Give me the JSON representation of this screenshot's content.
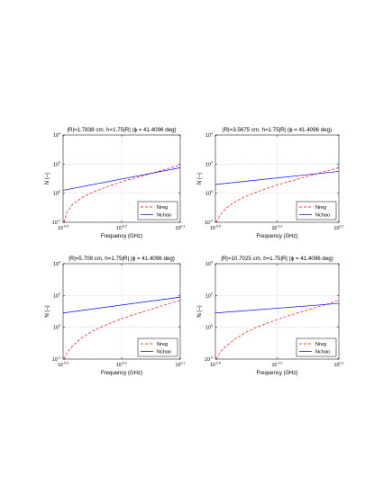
{
  "chart_data": [
    {
      "type": "line",
      "title": "|R|=1.7838 cm, h=1.75|R| (ϕ = 41.4096 deg)",
      "xlabel": "Frequency (GHz)",
      "ylabel": "N (–)",
      "xscale": "log",
      "yscale": "log",
      "xlim_exp": [
        -0.5,
        0.1
      ],
      "ylim_exp": [
        -2,
        4
      ],
      "xticks": [
        {
          "base": "10",
          "exp": "-0.5"
        },
        {
          "base": "10",
          "exp": "-0.2"
        },
        {
          "base": "10",
          "exp": "0.1"
        }
      ],
      "yticks": [
        {
          "base": "10",
          "exp": "4"
        },
        {
          "base": "10",
          "exp": "2"
        },
        {
          "base": "10",
          "exp": "0"
        },
        {
          "base": "10",
          "exp": "-2"
        }
      ],
      "grid": true,
      "legend": "bottom-right",
      "series": [
        {
          "name": "Nreg",
          "color": "#ff0000",
          "dash": "dashed",
          "x_exp": [
            -0.495,
            -0.48,
            -0.45,
            -0.4,
            -0.35,
            -0.3,
            -0.25,
            -0.2,
            -0.15,
            -0.1,
            -0.05,
            0.0,
            0.05,
            0.1
          ],
          "y_exp": [
            -2.0,
            -1.3,
            -0.75,
            -0.28,
            0.05,
            0.32,
            0.56,
            0.78,
            0.98,
            1.17,
            1.35,
            1.55,
            1.75,
            1.95
          ]
        },
        {
          "name": "Nchao",
          "color": "#0000ff",
          "dash": "solid",
          "x_exp": [
            -0.5,
            0.1
          ],
          "y_exp": [
            0.2,
            1.75
          ]
        }
      ]
    },
    {
      "type": "line",
      "title": "|R|=3.5675 cm, h=1.75|R| (ϕ = 41.4096 deg)",
      "xlabel": "Frequency (GHz)",
      "ylabel": "N (–)",
      "xscale": "log",
      "yscale": "log",
      "xlim_exp": [
        -0.5,
        0.1
      ],
      "ylim_exp": [
        -2,
        4
      ],
      "xticks": [
        {
          "base": "10",
          "exp": "-0.5"
        },
        {
          "base": "10",
          "exp": "-0.2"
        },
        {
          "base": "10",
          "exp": "0.1"
        }
      ],
      "yticks": [
        {
          "base": "10",
          "exp": "4"
        },
        {
          "base": "10",
          "exp": "2"
        },
        {
          "base": "10",
          "exp": "0"
        },
        {
          "base": "10",
          "exp": "-2"
        }
      ],
      "grid": true,
      "legend": "bottom-right",
      "series": [
        {
          "name": "Nreg",
          "color": "#ff0000",
          "dash": "dashed",
          "x_exp": [
            -0.495,
            -0.48,
            -0.45,
            -0.4,
            -0.35,
            -0.3,
            -0.25,
            -0.2,
            -0.15,
            -0.1,
            -0.05,
            0.0,
            0.05,
            0.1
          ],
          "y_exp": [
            -2.0,
            -1.55,
            -1.05,
            -0.55,
            -0.2,
            0.08,
            0.33,
            0.56,
            0.77,
            0.97,
            1.16,
            1.36,
            1.56,
            1.75
          ]
        },
        {
          "name": "Nchao",
          "color": "#0000ff",
          "dash": "solid",
          "x_exp": [
            -0.5,
            0.1
          ],
          "y_exp": [
            0.6,
            1.5
          ]
        }
      ]
    },
    {
      "type": "line",
      "title": "|R|=5.708 cm, h=1.75|R| (ϕ = 41.4096 deg)",
      "xlabel": "Frequency (GHz)",
      "ylabel": "N (–)",
      "xscale": "log",
      "yscale": "log",
      "xlim_exp": [
        -0.5,
        0.1
      ],
      "ylim_exp": [
        -2,
        4
      ],
      "xticks": [
        {
          "base": "10",
          "exp": "-0.5"
        },
        {
          "base": "10",
          "exp": "-0.2"
        },
        {
          "base": "10",
          "exp": "0.1"
        }
      ],
      "yticks": [
        {
          "base": "10",
          "exp": "4"
        },
        {
          "base": "10",
          "exp": "2"
        },
        {
          "base": "10",
          "exp": "0"
        },
        {
          "base": "10",
          "exp": "-2"
        }
      ],
      "grid": true,
      "legend": "bottom-right",
      "series": [
        {
          "name": "Nreg",
          "color": "#ff0000",
          "dash": "dashed",
          "x_exp": [
            -0.495,
            -0.48,
            -0.45,
            -0.4,
            -0.35,
            -0.3,
            -0.25,
            -0.2,
            -0.15,
            -0.1,
            -0.05,
            0.0,
            0.05,
            0.1
          ],
          "y_exp": [
            -2.0,
            -1.6,
            -1.15,
            -0.62,
            -0.25,
            0.05,
            0.3,
            0.53,
            0.74,
            0.94,
            1.13,
            1.33,
            1.52,
            1.7
          ]
        },
        {
          "name": "Nchao",
          "color": "#0000ff",
          "dash": "solid",
          "x_exp": [
            -0.5,
            0.1
          ],
          "y_exp": [
            0.9,
            1.9
          ]
        }
      ]
    },
    {
      "type": "line",
      "title": "|R|=10.7025 cm, h=1.75|R| (ϕ = 41.4096 deg)",
      "xlabel": "Frequency (GHz)",
      "ylabel": "N (–)",
      "xscale": "log",
      "yscale": "log",
      "xlim_exp": [
        -0.5,
        0.1
      ],
      "ylim_exp": [
        -2,
        4
      ],
      "xticks": [
        {
          "base": "10",
          "exp": "-0.5"
        },
        {
          "base": "10",
          "exp": "-0.2"
        },
        {
          "base": "10",
          "exp": "0.1"
        }
      ],
      "yticks": [
        {
          "base": "10",
          "exp": "4"
        },
        {
          "base": "10",
          "exp": "2"
        },
        {
          "base": "10",
          "exp": "0"
        },
        {
          "base": "10",
          "exp": "-2"
        }
      ],
      "grid": true,
      "legend": "bottom-right",
      "series": [
        {
          "name": "Nreg",
          "color": "#ff0000",
          "dash": "dashed",
          "x_exp": [
            -0.495,
            -0.48,
            -0.45,
            -0.4,
            -0.35,
            -0.3,
            -0.25,
            -0.2,
            -0.15,
            -0.1,
            -0.05,
            0.0,
            0.05,
            0.1
          ],
          "y_exp": [
            -2.0,
            -1.6,
            -1.2,
            -0.7,
            -0.3,
            0.0,
            0.25,
            0.48,
            0.7,
            0.9,
            1.1,
            1.3,
            1.48,
            1.7
          ]
        },
        {
          "name": "Nchao",
          "color": "#0000ff",
          "dash": "solid",
          "x_exp": [
            -0.5,
            0.1
          ],
          "y_exp": [
            0.9,
            1.5
          ]
        }
      ]
    }
  ]
}
